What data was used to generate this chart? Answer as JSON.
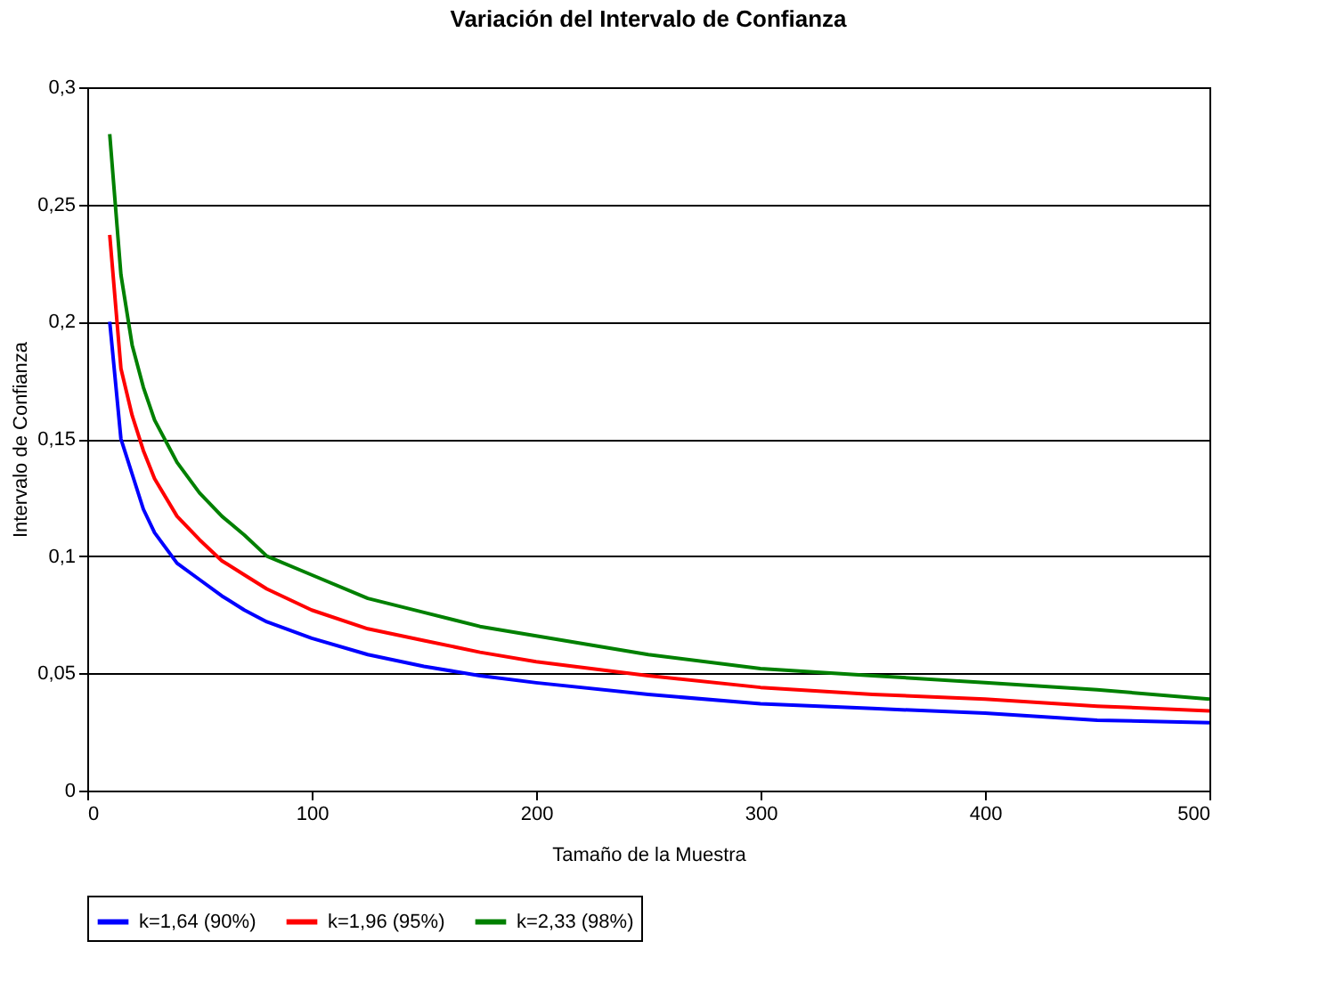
{
  "chart_data": {
    "type": "line",
    "title": "Variación del Intervalo de Confianza",
    "xlabel": "Tamaño de la Muestra",
    "ylabel": "Intervalo de Confianza",
    "x": [
      10,
      15,
      20,
      25,
      30,
      40,
      50,
      60,
      70,
      80,
      100,
      125,
      150,
      175,
      200,
      250,
      300,
      350,
      400,
      450,
      500
    ],
    "series": [
      {
        "name": "k=1,64 (90%)",
        "color": "#0000ff",
        "values": [
          0.2,
          0.15,
          0.135,
          0.12,
          0.11,
          0.097,
          0.09,
          0.083,
          0.077,
          0.072,
          0.065,
          0.058,
          0.053,
          0.049,
          0.046,
          0.041,
          0.037,
          0.035,
          0.033,
          0.03,
          0.029
        ]
      },
      {
        "name": "k=1,96 (95%)",
        "color": "#ff0000",
        "values": [
          0.237,
          0.18,
          0.16,
          0.145,
          0.133,
          0.117,
          0.107,
          0.098,
          0.092,
          0.086,
          0.077,
          0.069,
          0.064,
          0.059,
          0.055,
          0.049,
          0.044,
          0.041,
          0.039,
          0.036,
          0.034
        ]
      },
      {
        "name": "k=2,33 (98%)",
        "color": "#008000",
        "values": [
          0.28,
          0.22,
          0.19,
          0.172,
          0.158,
          0.14,
          0.127,
          0.117,
          0.109,
          0.1,
          0.092,
          0.082,
          0.076,
          0.07,
          0.066,
          0.058,
          0.052,
          0.049,
          0.046,
          0.043,
          0.039
        ]
      }
    ],
    "xlim": [
      0,
      500
    ],
    "xticks": [
      0,
      100,
      200,
      300,
      400,
      500
    ],
    "ylim": [
      0,
      0.3
    ],
    "yticks": [
      0,
      {
        "value": 0.05,
        "label": "0,05"
      },
      {
        "value": 0.1,
        "label": "0,1"
      },
      {
        "value": 0.15,
        "label": "0,15"
      },
      {
        "value": 0.2,
        "label": "0,2"
      },
      {
        "value": 0.25,
        "label": "0,25"
      },
      {
        "value": 0.3,
        "label": "0,3"
      }
    ],
    "grid": "y",
    "legend": "bottom",
    "marker": "none",
    "line_style": "solid"
  }
}
